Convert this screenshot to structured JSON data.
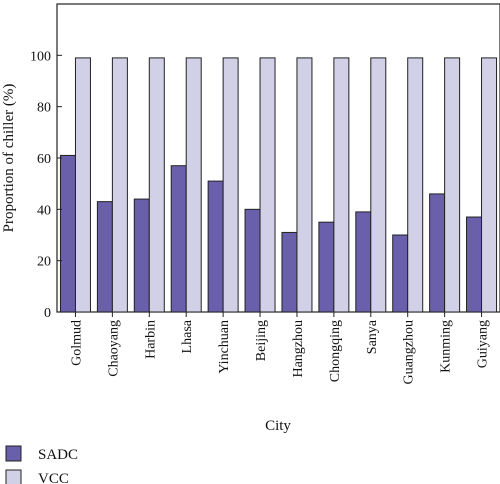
{
  "chart_data": {
    "type": "bar",
    "xlabel": "City",
    "ylabel": "Proportion of chiller (%)",
    "ylim": [
      0,
      120
    ],
    "yticks": [
      0,
      20,
      40,
      60,
      80,
      100
    ],
    "grid": false,
    "legend_position": "bottom-left",
    "categories": [
      "Golmud",
      "Chaoyang",
      "Harbin",
      "Lhasa",
      "Yinchuan",
      "Beijing",
      "Hangzhou",
      "Chongqing",
      "Sanya",
      "Guangzhou",
      "Kunming",
      "Guiyang"
    ],
    "series": [
      {
        "name": "SADC",
        "color": "#6a5fab",
        "values": [
          61,
          43,
          44,
          57,
          51,
          40,
          31,
          35,
          39,
          30,
          46,
          37
        ]
      },
      {
        "name": "VCC",
        "color": "#d2d0e6",
        "values": [
          99,
          99,
          99,
          99,
          99,
          99,
          99,
          99,
          99,
          99,
          99,
          99
        ]
      }
    ]
  }
}
